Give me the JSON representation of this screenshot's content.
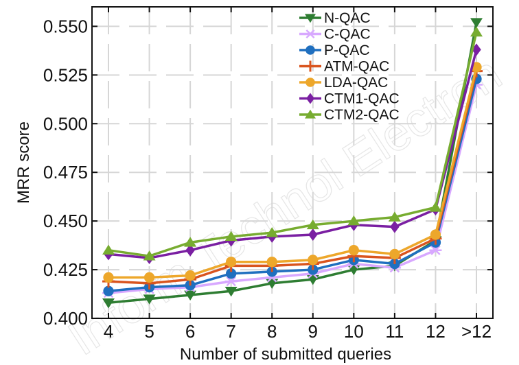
{
  "chart_data": {
    "type": "line",
    "xlabel": "Number of submitted queries",
    "ylabel": "MRR score",
    "categories": [
      "4",
      "5",
      "6",
      "7",
      "8",
      "9",
      "10",
      "11",
      "12",
      ">12"
    ],
    "ylim": [
      0.4,
      0.56
    ],
    "yticks": [
      "0.400",
      "0.425",
      "0.450",
      "0.475",
      "0.500",
      "0.525",
      "0.550"
    ],
    "grid": true,
    "legend_position": "top-right",
    "series": [
      {
        "name": "N-QAC",
        "color": "#2e7d32",
        "marker": "triangle-down",
        "values": [
          0.408,
          0.41,
          0.412,
          0.414,
          0.418,
          0.42,
          0.425,
          0.427,
          0.44,
          0.552
        ]
      },
      {
        "name": "C-QAC",
        "color": "#d8a8ff",
        "marker": "asterisk",
        "values": [
          0.413,
          0.415,
          0.416,
          0.419,
          0.421,
          0.423,
          0.428,
          0.426,
          0.435,
          0.52
        ]
      },
      {
        "name": "P-QAC",
        "color": "#1f6fbf",
        "marker": "circle",
        "values": [
          0.414,
          0.416,
          0.417,
          0.423,
          0.424,
          0.425,
          0.43,
          0.428,
          0.439,
          0.523
        ]
      },
      {
        "name": "ATM-QAC",
        "color": "#d9541e",
        "marker": "plus",
        "values": [
          0.419,
          0.418,
          0.42,
          0.427,
          0.427,
          0.428,
          0.432,
          0.431,
          0.441,
          0.527
        ]
      },
      {
        "name": "LDA-QAC",
        "color": "#eda72b",
        "marker": "circle",
        "values": [
          0.421,
          0.421,
          0.422,
          0.429,
          0.429,
          0.43,
          0.435,
          0.433,
          0.443,
          0.529
        ]
      },
      {
        "name": "CTM1-QAC",
        "color": "#7a1fa2",
        "marker": "diamond",
        "values": [
          0.433,
          0.431,
          0.435,
          0.44,
          0.442,
          0.443,
          0.448,
          0.447,
          0.456,
          0.538
        ]
      },
      {
        "name": "CTM2-QAC",
        "color": "#77ac30",
        "marker": "triangle-up",
        "values": [
          0.435,
          0.432,
          0.439,
          0.442,
          0.444,
          0.448,
          0.45,
          0.452,
          0.457,
          0.547
        ]
      }
    ],
    "watermark": "Inform Technol Electron"
  }
}
